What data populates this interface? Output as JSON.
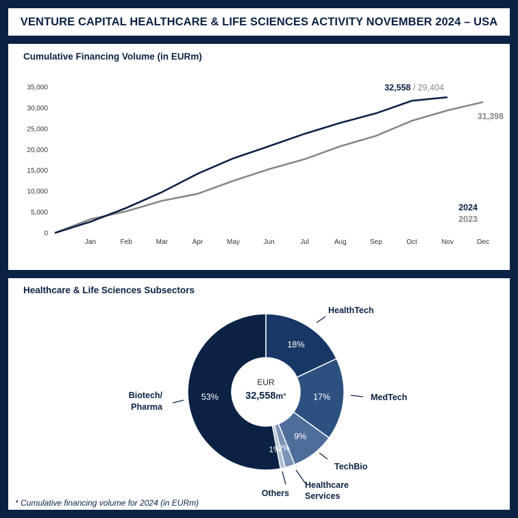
{
  "page_title": "VENTURE CAPITAL HEALTHCARE & LIFE SCIENCES ACTIVITY NOVEMBER 2024 – USA",
  "colors": {
    "navy": "#0b2244",
    "series_2024": "#0b2244",
    "series_2023": "#878787",
    "healthtech": "#183766",
    "medtech": "#2c5181",
    "techbio": "#4f6d9a",
    "healthcare_services": "#7c93b8",
    "others": "#aebdd3"
  },
  "chart_data": [
    {
      "type": "line",
      "title": "Cumulative Financing Volume (in EURm)",
      "xlabel": "",
      "ylabel": "",
      "categories": [
        "",
        "Jan",
        "Feb",
        "Mar",
        "Apr",
        "May",
        "Jun",
        "Jul",
        "Aug",
        "Sep",
        "Oct",
        "Nov",
        "Dec"
      ],
      "ylim": [
        0,
        35000
      ],
      "yticks": [
        0,
        5000,
        10000,
        15000,
        20000,
        25000,
        30000,
        35000
      ],
      "ytick_labels": [
        "0",
        "5,000",
        "10,000",
        "15,000",
        "20,000",
        "25,000",
        "30,000",
        "35,000"
      ],
      "grid": false,
      "series": [
        {
          "name": "2024",
          "values": [
            0,
            2700,
            6000,
            9800,
            14200,
            17900,
            20800,
            23800,
            26400,
            28700,
            31700,
            32558,
            null
          ],
          "end_label": "32,558"
        },
        {
          "name": "2023",
          "values": [
            0,
            3300,
            5200,
            7700,
            9400,
            12500,
            15300,
            17700,
            20800,
            23300,
            26900,
            29404,
            31398
          ],
          "mid_label": "29,404",
          "end_label": "31,398"
        }
      ],
      "label_separator": "/",
      "legend_placement": "bottom-right"
    },
    {
      "type": "pie",
      "title": "Healthcare & Life Sciences Subsectors",
      "center_prefix": "EUR",
      "center_value": "32,558",
      "center_unit": "m",
      "center_marker": "*",
      "slices": [
        {
          "name": "HealthTech",
          "label_lines": [
            "HealthTech"
          ],
          "value": 18,
          "pct_label": "18%"
        },
        {
          "name": "MedTech",
          "label_lines": [
            "MedTech"
          ],
          "value": 17,
          "pct_label": "17%"
        },
        {
          "name": "TechBio",
          "label_lines": [
            "TechBio"
          ],
          "value": 9,
          "pct_label": "9%"
        },
        {
          "name": "Healthcare Services",
          "label_lines": [
            "Healthcare",
            "Services"
          ],
          "value": 2,
          "pct_label": "2%"
        },
        {
          "name": "Others",
          "label_lines": [
            "Others"
          ],
          "value": 1,
          "pct_label": "1%"
        },
        {
          "name": "Biotech/Pharma",
          "label_lines": [
            "Biotech/",
            "Pharma"
          ],
          "value": 53,
          "pct_label": "53%"
        }
      ],
      "footnote": "* Cumulative financing volume for 2024 (in EURm)"
    }
  ]
}
